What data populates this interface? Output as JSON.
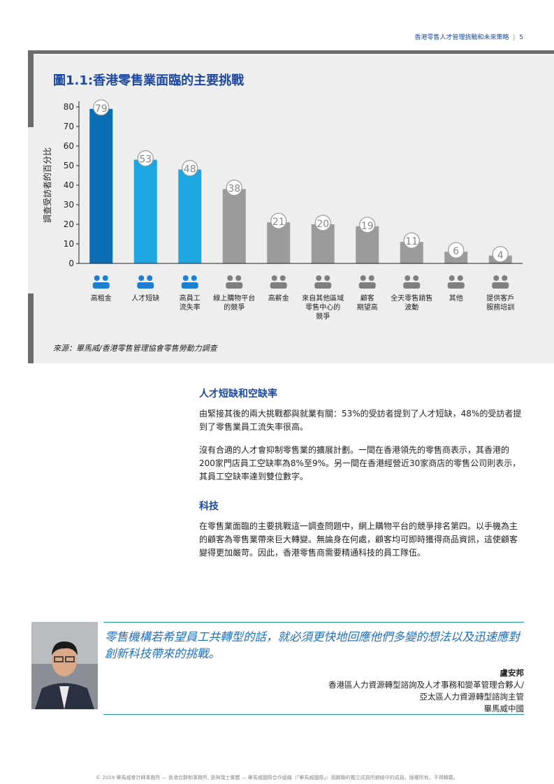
{
  "header": {
    "title": "香港零售人才管理挑戰和未來策略",
    "page": "5"
  },
  "chart_data": {
    "type": "bar",
    "title": "圖1.1:香港零售業面臨的主要挑戰",
    "y_label": "調查受訪者的百分比",
    "categories": [
      "高租金",
      "人才短缺",
      "高員工\n流失率",
      "線上購物平台\n的競爭",
      "高薪金",
      "來自其他區域\n零售中心的\n競爭",
      "顧客\n期望高",
      "全天零售銷售\n波動",
      "其他",
      "提供客戶\n服務培訓"
    ],
    "values": [
      79,
      53,
      48,
      38,
      21,
      20,
      19,
      11,
      6,
      4
    ],
    "colors": [
      "#0b6db4",
      "#1ea6e2",
      "#1ea6e2",
      "#9b9b9b",
      "#9b9b9b",
      "#9b9b9b",
      "#9b9b9b",
      "#9b9b9b",
      "#9b9b9b",
      "#9b9b9b"
    ],
    "ylim": [
      0,
      80
    ],
    "yticks": [
      0,
      10,
      20,
      30,
      40,
      50,
      60,
      70,
      80
    ],
    "source": "來源：畢馬威/香港零售管理協會零售勞動力調查"
  },
  "sections": [
    {
      "heading": "人才短缺和空缺率",
      "paragraphs": [
        "由緊接其後的兩大挑戰都與就業有關：53%的受訪者提到了人才短缺，48%的受訪者提到了零售業員工流失率很高。",
        "沒有合適的人才會抑制零售業的擴展計劃。一間在香港領先的零售商表示，其香港的200家門店員工空缺率為8%至9%。另一間在香港經營近30家商店的零售公司則表示，其員工空缺率達到雙位數字。"
      ]
    },
    {
      "heading": "科技",
      "paragraphs": [
        "在零售業面臨的主要挑戰這一調查問題中，網上購物平台的競爭排名第四。以手機為主的顧客為零售業帶來巨大轉變。無論身在何處，顧客均可即時獲得商品資訊，這使顧客變得更加嚴苛。因此，香港零售商需要精通科技的員工隊伍。"
      ]
    }
  ],
  "quote": {
    "text": "零售機構若希望員工共轉型的話，就必須更快地回應他們多變的想法以及迅速應對創新科技帶來的挑戰。",
    "name": "盧安邦",
    "titles": [
      "香港區人力資源轉型諮詢及人才事務和變革管理合夥人/",
      "亞太區人力資源轉型諮詢主管",
      "畢馬威中國"
    ]
  },
  "footer": "© 2019 畢馬威會計師事務所 — 香港合夥制事務所, 是與瑞士實體 — 畢馬威國際合作組織（「畢馬威國際」）相關聯的獨立成員所網絡中的成員。版權所有，不得轉載。"
}
